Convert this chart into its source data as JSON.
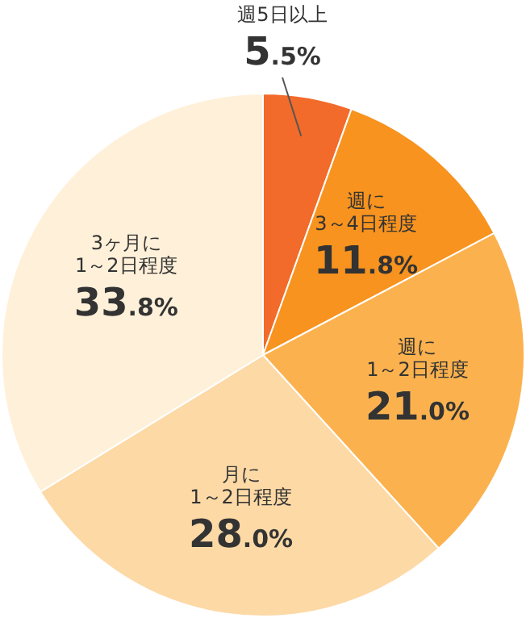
{
  "chart_data": {
    "type": "pie",
    "categories": [
      "週5日以上",
      "週に\n3～4日程度",
      "週に\n1～2日程度",
      "月に\n1～2日程度",
      "3ヶ月に\n1～2日程度"
    ],
    "values": [
      5.5,
      11.8,
      21.0,
      28.0,
      33.8
    ],
    "value_labels": [
      "5.5%",
      "11.8%",
      "21.0%",
      "28.0%",
      "33.8%"
    ],
    "colors": [
      "#f26b2a",
      "#f7931e",
      "#fbb24e",
      "#fdd9a6",
      "#fff0d9"
    ]
  }
}
